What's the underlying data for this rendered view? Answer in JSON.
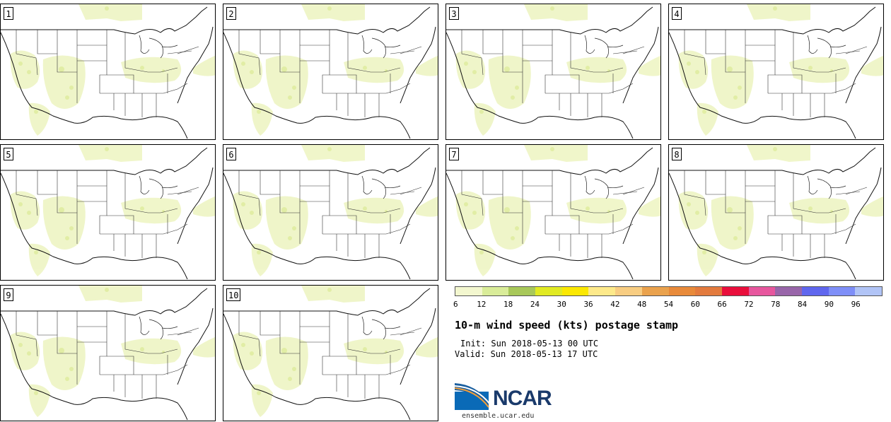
{
  "panels": [
    "1",
    "2",
    "3",
    "4",
    "5",
    "6",
    "7",
    "8",
    "9",
    "10"
  ],
  "colorbar": {
    "colors": [
      "#f3f7cf",
      "#d9ec99",
      "#a8c85a",
      "#e1ea23",
      "#fbe802",
      "#fde98a",
      "#f8cd82",
      "#eaa24d",
      "#e88a3a",
      "#e37b3e",
      "#e90f3c",
      "#e7579e",
      "#9966aa",
      "#6067ee",
      "#7f8ff8",
      "#b1c4f6"
    ],
    "ticks": [
      "6",
      "12",
      "18",
      "24",
      "30",
      "36",
      "42",
      "48",
      "54",
      "60",
      "66",
      "72",
      "78",
      "84",
      "90",
      "96"
    ]
  },
  "title": "10-m wind speed (kts) postage stamp",
  "init": "Init: Sun 2018-05-13 00 UTC",
  "valid": "Valid: Sun 2018-05-13 17 UTC",
  "logo": {
    "name": "NCAR",
    "url": "ensemble.ucar.edu"
  }
}
